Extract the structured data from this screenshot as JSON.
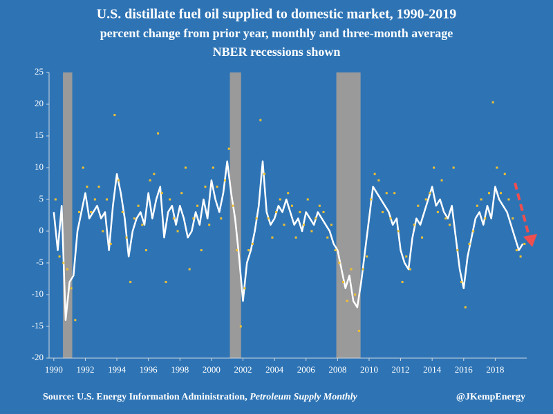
{
  "chart_data": {
    "type": "line",
    "title": "U.S. distillate fuel oil supplied to domestic market, 1990-2019",
    "subtitle": "percent change from prior year, monthly and three-month average",
    "subtitle2": "NBER recessions shown",
    "source": {
      "text": "Source: U.S. Energy Information Administration, ",
      "publication": "Petroleum Supply Monthly"
    },
    "credit": "@JKempEnergy",
    "x": [
      1990,
      1990.25,
      1990.5,
      1990.75,
      1991,
      1991.25,
      1991.5,
      1991.75,
      1992,
      1992.25,
      1992.5,
      1992.75,
      1993,
      1993.25,
      1993.5,
      1993.75,
      1994,
      1994.25,
      1994.5,
      1994.75,
      1995,
      1995.25,
      1995.5,
      1995.75,
      1996,
      1996.25,
      1996.5,
      1996.75,
      1997,
      1997.25,
      1997.5,
      1997.75,
      1998,
      1998.25,
      1998.5,
      1998.75,
      1999,
      1999.25,
      1999.5,
      1999.75,
      2000,
      2000.25,
      2000.5,
      2000.75,
      2001,
      2001.25,
      2001.5,
      2001.75,
      2002,
      2002.25,
      2002.5,
      2002.75,
      2003,
      2003.25,
      2003.5,
      2003.75,
      2004,
      2004.25,
      2004.5,
      2004.75,
      2005,
      2005.25,
      2005.5,
      2005.75,
      2006,
      2006.25,
      2006.5,
      2006.75,
      2007,
      2007.25,
      2007.5,
      2007.75,
      2008,
      2008.25,
      2008.5,
      2008.75,
      2009,
      2009.25,
      2009.5,
      2009.75,
      2010,
      2010.25,
      2010.5,
      2010.75,
      2011,
      2011.25,
      2011.5,
      2011.75,
      2012,
      2012.25,
      2012.5,
      2012.75,
      2013,
      2013.25,
      2013.5,
      2013.75,
      2014,
      2014.25,
      2014.5,
      2014.75,
      2015,
      2015.25,
      2015.5,
      2015.75,
      2016,
      2016.25,
      2016.5,
      2016.75,
      2017,
      2017.25,
      2017.5,
      2017.75,
      2018,
      2018.25,
      2018.5,
      2018.75,
      2019,
      2019.25,
      2019.5,
      2019.75
    ],
    "series": [
      {
        "style": "line",
        "color": "#ffffff",
        "values": [
          3,
          -3,
          4,
          -14,
          -8,
          -7,
          0,
          3,
          6,
          2,
          3,
          4,
          2,
          3,
          -3,
          4,
          9,
          6,
          2,
          -4,
          0,
          2,
          3,
          1,
          6,
          2,
          5,
          7,
          -1,
          3,
          4,
          1,
          4,
          2,
          -1,
          0,
          3,
          1,
          5,
          2,
          8,
          5,
          3,
          6,
          11,
          6,
          2,
          -4,
          -11,
          -5,
          -3,
          0,
          4,
          11,
          3,
          1,
          2,
          4,
          3,
          5,
          3,
          1,
          2,
          0,
          3,
          2,
          1,
          3,
          2,
          1,
          0,
          -2,
          -3,
          -6,
          -9,
          -7,
          -11,
          -12,
          -8,
          -3,
          2,
          7,
          6,
          5,
          4,
          3,
          1,
          2,
          -3,
          -5,
          -6,
          -1,
          2,
          1,
          3,
          5,
          7,
          4,
          5,
          3,
          2,
          4,
          -1,
          -6,
          -9,
          -4,
          -1,
          2,
          3,
          1,
          4,
          2,
          7,
          5,
          4,
          3,
          1,
          -1,
          -3,
          -2
        ]
      },
      {
        "style": "points",
        "color": "#f2c12e",
        "values": [
          5,
          -4,
          -5,
          -6,
          -9,
          -14,
          3,
          10,
          7,
          3,
          5,
          7,
          0,
          5,
          -2,
          18.3,
          8,
          3,
          -1,
          -8,
          2,
          4,
          1,
          -3,
          8,
          9,
          15.4,
          6,
          -8,
          5,
          2,
          0,
          6,
          10,
          -6,
          2,
          4,
          -3,
          7,
          1,
          10,
          7,
          2,
          8,
          13,
          4,
          -3,
          -15,
          -9,
          -3,
          -2,
          2,
          17.5,
          9,
          2,
          -1,
          3,
          5,
          1,
          6,
          4,
          -1,
          3,
          1,
          5,
          0,
          2,
          4,
          3,
          -1,
          1,
          -3,
          -5,
          -8,
          -11,
          -6,
          -10,
          -15.7,
          -6,
          -4,
          5,
          9,
          8,
          3,
          6,
          2,
          6,
          0,
          -8,
          -4,
          -6,
          1,
          4,
          -1,
          5,
          6,
          10,
          3,
          8,
          2,
          1,
          10,
          -3,
          -8,
          -12,
          -2,
          0,
          4,
          5,
          2,
          6,
          20.3,
          10,
          6,
          9,
          5,
          2,
          -3,
          -4,
          -2
        ]
      }
    ],
    "recessions": [
      [
        1990.58,
        1991.17
      ],
      [
        2001.17,
        2001.88
      ],
      [
        2007.92,
        2009.46
      ]
    ],
    "recession_color": "#9a9a9a",
    "xlim": [
      1989.7,
      2020
    ],
    "xticks": [
      1990,
      1992,
      1994,
      1996,
      1998,
      2000,
      2002,
      2004,
      2006,
      2008,
      2010,
      2012,
      2014,
      2016,
      2018
    ],
    "ylim": [
      -20,
      25
    ],
    "yticks": [
      -20,
      -15,
      -10,
      -5,
      0,
      5,
      10,
      15,
      20,
      25
    ],
    "background": "#2e74b5"
  }
}
